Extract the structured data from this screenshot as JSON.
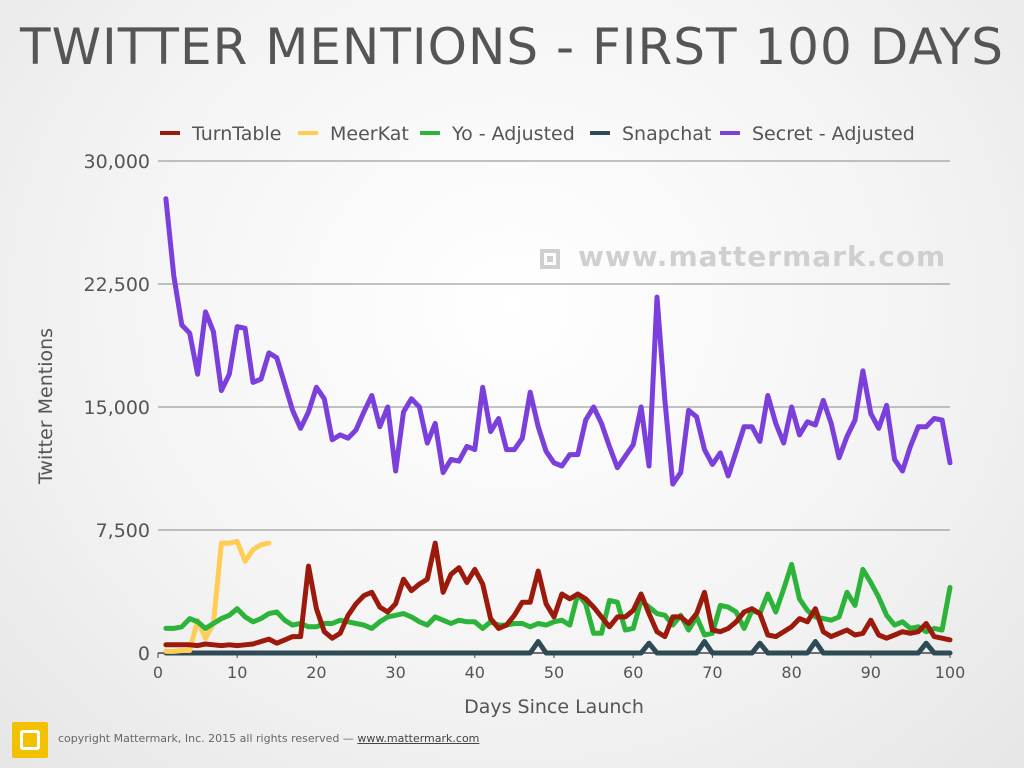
{
  "chart_data": {
    "type": "line",
    "title": "TWITTER MENTIONS - FIRST 100 DAYS",
    "xlabel": "Days Since Launch",
    "ylabel": "Twitter Mentions",
    "xlim": [
      0,
      100
    ],
    "ylim": [
      0,
      30000
    ],
    "x_ticks": [
      0,
      10,
      20,
      30,
      40,
      50,
      60,
      70,
      80,
      90,
      100
    ],
    "x_tick_labels": [
      "0",
      "10",
      "20",
      "30",
      "40",
      "50",
      "60",
      "70",
      "80",
      "90",
      "100"
    ],
    "y_ticks": [
      0,
      7500,
      15000,
      22500,
      30000
    ],
    "y_tick_labels": [
      "0",
      "7,500",
      "15,000",
      "22,500",
      "30,000"
    ],
    "grid": "horizontal",
    "legend_position": "top",
    "series": [
      {
        "name": "TurnTable",
        "color": "#9b1a0c",
        "x": [
          1,
          2,
          3,
          4,
          5,
          6,
          7,
          8,
          9,
          10,
          11,
          12,
          13,
          14,
          15,
          16,
          17,
          18,
          19,
          20,
          21,
          22,
          23,
          24,
          25,
          26,
          27,
          28,
          29,
          30,
          31,
          32,
          33,
          34,
          35,
          36,
          37,
          38,
          39,
          40,
          41,
          42,
          43,
          44,
          45,
          46,
          47,
          48,
          49,
          50,
          51,
          52,
          53,
          54,
          55,
          56,
          57,
          58,
          59,
          60,
          61,
          62,
          63,
          64,
          65,
          66,
          67,
          68,
          69,
          70,
          71,
          72,
          73,
          74,
          75,
          76,
          77,
          78,
          79,
          80,
          81,
          82,
          83,
          84,
          85,
          86,
          87,
          88,
          89,
          90,
          91,
          92,
          93,
          94,
          95,
          96,
          97,
          98,
          99,
          100
        ],
        "y": [
          500,
          500,
          500,
          500,
          450,
          550,
          500,
          450,
          500,
          450,
          500,
          550,
          700,
          850,
          600,
          800,
          1000,
          1000,
          5300,
          2700,
          1300,
          900,
          1200,
          2300,
          3000,
          3500,
          3700,
          2800,
          2500,
          3000,
          4500,
          3800,
          4200,
          4500,
          6700,
          3700,
          4800,
          5200,
          4300,
          5100,
          4200,
          2100,
          1500,
          1700,
          2300,
          3100,
          3100,
          5000,
          3000,
          2200,
          3600,
          3300,
          3600,
          3300,
          2800,
          2200,
          1600,
          2200,
          2200,
          2600,
          3600,
          2400,
          1300,
          1000,
          2200,
          2200,
          1800,
          2400,
          3700,
          1400,
          1300,
          1500,
          1900,
          2500,
          2700,
          2400,
          1100,
          1000,
          1300,
          1600,
          2100,
          1900,
          2700,
          1300,
          1000,
          1200,
          1400,
          1100,
          1200,
          2000,
          1100,
          900,
          1100,
          1300,
          1200,
          1300,
          1800,
          1000,
          900,
          800
        ]
      },
      {
        "name": "MeerKat",
        "color": "#ffcc55",
        "x": [
          1,
          2,
          3,
          4,
          5,
          6,
          7,
          8,
          9,
          10,
          11,
          12,
          13,
          14
        ],
        "y": [
          100,
          100,
          150,
          150,
          2000,
          900,
          1800,
          6700,
          6700,
          6800,
          5600,
          6300,
          6600,
          6700
        ]
      },
      {
        "name": "Yo - Adjusted",
        "color": "#2bb33a",
        "x": [
          1,
          2,
          3,
          4,
          5,
          6,
          7,
          8,
          9,
          10,
          11,
          12,
          13,
          14,
          15,
          16,
          17,
          18,
          19,
          20,
          21,
          22,
          23,
          24,
          25,
          26,
          27,
          28,
          29,
          30,
          31,
          32,
          33,
          34,
          35,
          36,
          37,
          38,
          39,
          40,
          41,
          42,
          43,
          44,
          45,
          46,
          47,
          48,
          49,
          50,
          51,
          52,
          53,
          54,
          55,
          56,
          57,
          58,
          59,
          60,
          61,
          62,
          63,
          64,
          65,
          66,
          67,
          68,
          69,
          70,
          71,
          72,
          73,
          74,
          75,
          76,
          77,
          78,
          79,
          80,
          81,
          82,
          83,
          84,
          85,
          86,
          87,
          88,
          89,
          90,
          91,
          92,
          93,
          94,
          95,
          96,
          97,
          98,
          99,
          100
        ],
        "y": [
          1500,
          1500,
          1600,
          2100,
          1900,
          1500,
          1800,
          2100,
          2300,
          2700,
          2200,
          1900,
          2100,
          2400,
          2500,
          2000,
          1700,
          1800,
          1600,
          1600,
          1800,
          1800,
          2000,
          1900,
          1800,
          1700,
          1500,
          1900,
          2200,
          2300,
          2400,
          2200,
          1900,
          1700,
          2200,
          2000,
          1800,
          2000,
          1900,
          1900,
          1500,
          1900,
          1700,
          1700,
          1800,
          1800,
          1600,
          1800,
          1700,
          1900,
          2000,
          1700,
          3600,
          3000,
          1200,
          1200,
          3200,
          3100,
          1400,
          1500,
          3200,
          2800,
          2400,
          2300,
          1700,
          2300,
          1400,
          2200,
          1100,
          1200,
          2900,
          2800,
          2500,
          1500,
          2600,
          2400,
          3600,
          2500,
          3900,
          5400,
          3300,
          2600,
          2200,
          2100,
          2000,
          2200,
          3700,
          2900,
          5100,
          4300,
          3400,
          2300,
          1700,
          1900,
          1500,
          1600,
          1300,
          1500,
          1400,
          4000
        ]
      },
      {
        "name": "Snapchat",
        "color": "#2d4a55",
        "x": [
          1,
          2,
          3,
          4,
          5,
          6,
          7,
          8,
          9,
          10,
          11,
          12,
          13,
          14,
          15,
          16,
          17,
          18,
          19,
          20,
          21,
          22,
          23,
          24,
          25,
          26,
          27,
          28,
          29,
          30,
          31,
          32,
          33,
          34,
          35,
          36,
          37,
          38,
          39,
          40,
          41,
          42,
          43,
          44,
          45,
          46,
          47,
          48,
          49,
          50,
          51,
          52,
          53,
          54,
          55,
          56,
          57,
          58,
          59,
          60,
          61,
          62,
          63,
          64,
          65,
          66,
          67,
          68,
          69,
          70,
          71,
          72,
          73,
          74,
          75,
          76,
          77,
          78,
          79,
          80,
          81,
          82,
          83,
          84,
          85,
          86,
          87,
          88,
          89,
          90,
          91,
          92,
          93,
          94,
          95,
          96,
          97,
          98,
          99,
          100
        ],
        "y": [
          0,
          0,
          0,
          0,
          0,
          0,
          0,
          0,
          0,
          0,
          0,
          0,
          0,
          0,
          0,
          0,
          0,
          0,
          0,
          0,
          0,
          0,
          0,
          0,
          0,
          0,
          0,
          0,
          0,
          0,
          0,
          0,
          0,
          0,
          0,
          0,
          0,
          0,
          0,
          0,
          0,
          0,
          0,
          0,
          0,
          0,
          0,
          700,
          0,
          0,
          0,
          0,
          0,
          0,
          0,
          0,
          0,
          0,
          0,
          0,
          0,
          600,
          0,
          0,
          0,
          0,
          0,
          0,
          700,
          0,
          0,
          0,
          0,
          0,
          0,
          600,
          0,
          0,
          0,
          0,
          0,
          0,
          700,
          0,
          0,
          0,
          0,
          0,
          0,
          0,
          0,
          0,
          0,
          0,
          0,
          0,
          600,
          0,
          0,
          0
        ]
      },
      {
        "name": "Secret - Adjusted",
        "color": "#7b3fdc",
        "x": [
          1,
          2,
          3,
          4,
          5,
          6,
          7,
          8,
          9,
          10,
          11,
          12,
          13,
          14,
          15,
          16,
          17,
          18,
          19,
          20,
          21,
          22,
          23,
          24,
          25,
          26,
          27,
          28,
          29,
          30,
          31,
          32,
          33,
          34,
          35,
          36,
          37,
          38,
          39,
          40,
          41,
          42,
          43,
          44,
          45,
          46,
          47,
          48,
          49,
          50,
          51,
          52,
          53,
          54,
          55,
          56,
          57,
          58,
          59,
          60,
          61,
          62,
          63,
          64,
          65,
          66,
          67,
          68,
          69,
          70,
          71,
          72,
          73,
          74,
          75,
          76,
          77,
          78,
          79,
          80,
          81,
          82,
          83,
          84,
          85,
          86,
          87,
          88,
          89,
          90,
          91,
          92,
          93,
          94,
          95,
          96,
          97,
          98,
          99,
          100
        ],
        "y": [
          27700,
          23000,
          20000,
          19500,
          17000,
          20800,
          19600,
          16000,
          17000,
          19900,
          19800,
          16500,
          16700,
          18300,
          18000,
          16400,
          14800,
          13700,
          14700,
          16200,
          15500,
          13000,
          13300,
          13100,
          13600,
          14700,
          15700,
          13800,
          15000,
          11100,
          14700,
          15500,
          15000,
          12800,
          14000,
          11000,
          11800,
          11700,
          12600,
          12400,
          16200,
          13500,
          14300,
          12400,
          12400,
          13100,
          15900,
          13800,
          12300,
          11600,
          11400,
          12100,
          12100,
          14200,
          15000,
          14000,
          12600,
          11300,
          12000,
          12700,
          15000,
          11400,
          21700,
          15400,
          10300,
          11000,
          14800,
          14400,
          12400,
          11500,
          12200,
          10800,
          12300,
          13800,
          13800,
          12900,
          15700,
          14000,
          12800,
          15000,
          13300,
          14100,
          13900,
          15400,
          14000,
          11900,
          13200,
          14200,
          17200,
          14600,
          13700,
          15100,
          11800,
          11100,
          12600,
          13800,
          13800,
          14300,
          14200,
          11600
        ]
      }
    ]
  },
  "watermark": {
    "icon": "mattermark-square-icon",
    "text": "www.mattermark.com"
  },
  "footer": {
    "logo_icon": "mattermark-logo-icon",
    "logo_color": "#f2c200",
    "copyright": "copyright Mattermark, Inc. 2015 all rights reserved — ",
    "link_text": "www.mattermark.com"
  }
}
